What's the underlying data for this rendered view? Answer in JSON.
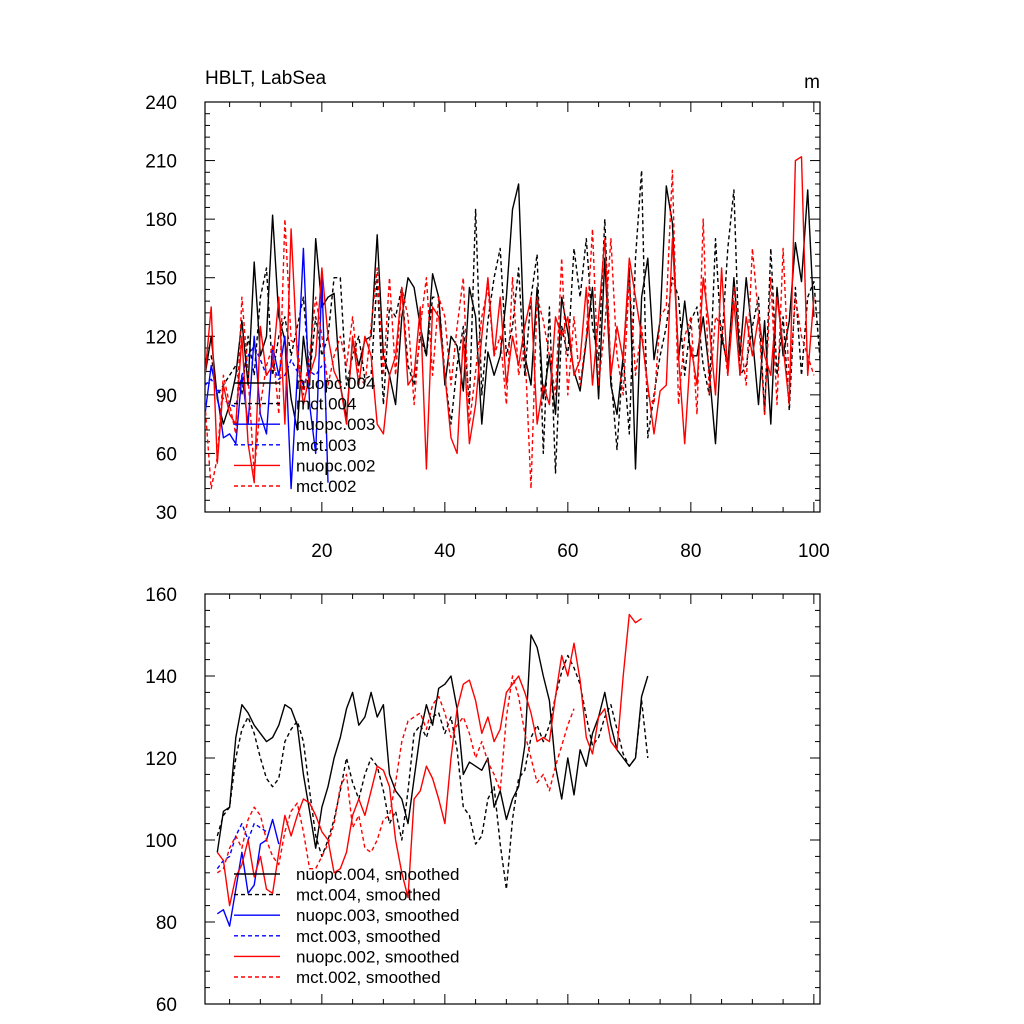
{
  "chart_data": [
    {
      "type": "line",
      "title": "HBLT, LabSea",
      "units": "m",
      "xlim": [
        1,
        101
      ],
      "ylim": [
        30,
        240
      ],
      "xticks": [
        20,
        40,
        60,
        80,
        100
      ],
      "yticks": [
        30,
        60,
        90,
        120,
        150,
        180,
        210,
        240
      ],
      "x_start": 1,
      "series": [
        {
          "name": "nuopc.004",
          "color": "#000000",
          "dash": false,
          "values": [
            100,
            120,
            88,
            75,
            85,
            100,
            128,
            95,
            158,
            110,
            120,
            182,
            130,
            118,
            88,
            72,
            120,
            95,
            170,
            135,
            140,
            142,
            95,
            78,
            118,
            105,
            118,
            120,
            172,
            110,
            100,
            85,
            130,
            150,
            145,
            125,
            110,
            152,
            140,
            95,
            120,
            115,
            92,
            145,
            130,
            75,
            112,
            100,
            110,
            140,
            185,
            198,
            110,
            95,
            145,
            88,
            110,
            80,
            140,
            122,
            102,
            92,
            118,
            145,
            88,
            160,
            95,
            80,
            110,
            155,
            52,
            140,
            160,
            108,
            128,
            197,
            178,
            108,
            138,
            110,
            110,
            130,
            102,
            65,
            120,
            105,
            150,
            110,
            150,
            120,
            85,
            128,
            75,
            145,
            110,
            128,
            168,
            148,
            195,
            130
          ]
        },
        {
          "name": "mct.004",
          "color": "#000000",
          "dash": true,
          "values": [
            108,
            110,
            90,
            95,
            100,
            105,
            90,
            120,
            100,
            140,
            155,
            100,
            120,
            130,
            110,
            125,
            140,
            100,
            130,
            110,
            120,
            150,
            150,
            95,
            110,
            120,
            98,
            100,
            150,
            85,
            135,
            130,
            145,
            105,
            95,
            120,
            110,
            140,
            140,
            100,
            75,
            105,
            125,
            85,
            185,
            90,
            128,
            150,
            165,
            110,
            125,
            155,
            100,
            140,
            162,
            60,
            135,
            50,
            125,
            110,
            165,
            140,
            170,
            125,
            108,
            180,
            100,
            62,
            110,
            70,
            160,
            205,
            68,
            90,
            110,
            125,
            150,
            140,
            100,
            128,
            135,
            105,
            90,
            170,
            115,
            165,
            195,
            100,
            105,
            125,
            140,
            80,
            165,
            100,
            130,
            82,
            145,
            100,
            140,
            148,
            108
          ]
        },
        {
          "name": "nuopc.003",
          "color": "#0000ff",
          "dash": false,
          "values": [
            80,
            105,
            90,
            68,
            70,
            65,
            100,
            75,
            120,
            80,
            70,
            115,
            100,
            120,
            42,
            100,
            165,
            85,
            60,
            150,
            45
          ]
        },
        {
          "name": "mct.003",
          "color": "#0000ff",
          "dash": true,
          "values": [
            95,
            98,
            93,
            88,
            85,
            84,
            100,
            110,
            115,
            108,
            100,
            105,
            98,
            100,
            108,
            102,
            95,
            102,
            100,
            105
          ]
        },
        {
          "name": "nuopc.002",
          "color": "#ff0000",
          "dash": false,
          "values": [
            100,
            135,
            55,
            95,
            80,
            75,
            120,
            65,
            45,
            125,
            100,
            105,
            140,
            75,
            175,
            110,
            85,
            100,
            110,
            155,
            120,
            102,
            95,
            75,
            120,
            95,
            120,
            110,
            75,
            70,
            100,
            110,
            145,
            95,
            100,
            135,
            52,
            135,
            130,
            100,
            68,
            60,
            120,
            65,
            85,
            120,
            150,
            110,
            140,
            95,
            120,
            105,
            125,
            140,
            75,
            95,
            85,
            130,
            120,
            130,
            100,
            108,
            145,
            95,
            130,
            170,
            100,
            125,
            108,
            160,
            140,
            120,
            95,
            70,
            92,
            95,
            170,
            110,
            65,
            115,
            95,
            150,
            125,
            90,
            155,
            100,
            138,
            100,
            130,
            110,
            130,
            110,
            100,
            140,
            115,
            85,
            210,
            212,
            100,
            140
          ]
        },
        {
          "name": "mct.002",
          "color": "#ff0000",
          "dash": true,
          "values": [
            85,
            42,
            58,
            100,
            85,
            70,
            140,
            100,
            50,
            85,
            105,
            115,
            80,
            180,
            118,
            115,
            90,
            110,
            140,
            120,
            95,
            110,
            120,
            105,
            130,
            100,
            95,
            125,
            155,
            100,
            150,
            100,
            145,
            130,
            85,
            125,
            150,
            100,
            140,
            130,
            95,
            125,
            150,
            75,
            102,
            130,
            145,
            110,
            120,
            85,
            150,
            100,
            115,
            42,
            140,
            128,
            110,
            90,
            160,
            90,
            130,
            95,
            120,
            175,
            95,
            125,
            170,
            110,
            90,
            150,
            100,
            125,
            90,
            85,
            130,
            135,
            205,
            85,
            120,
            130,
            80,
            180,
            90,
            130,
            125,
            100,
            145,
            120,
            95,
            165,
            130,
            80,
            150,
            85,
            165,
            95,
            140,
            120,
            110,
            100
          ]
        }
      ]
    },
    {
      "type": "line",
      "xlim": [
        1,
        101
      ],
      "ylim": [
        60,
        160
      ],
      "yticks": [
        60,
        80,
        100,
        120,
        140,
        160
      ],
      "x_start": 3,
      "series": [
        {
          "name": "nuopc.004, smoothed",
          "color": "#000000",
          "dash": false,
          "values": [
            97,
            107,
            108,
            125,
            133,
            131,
            128,
            126,
            124,
            125,
            128,
            133,
            132,
            128,
            116,
            107,
            98,
            108,
            113,
            120,
            125,
            132,
            136,
            128,
            130,
            136,
            130,
            133,
            116,
            112,
            110,
            104,
            115,
            126,
            133,
            128,
            137,
            138,
            140,
            132,
            116,
            119,
            118,
            117,
            120,
            108,
            112,
            105,
            110,
            113,
            123,
            150,
            147,
            140,
            134,
            118,
            110,
            120,
            111,
            122,
            118,
            126,
            130,
            136,
            128,
            122,
            120,
            118,
            120,
            135,
            140
          ]
        },
        {
          "name": "mct.004, smoothed",
          "color": "#000000",
          "dash": true,
          "values": [
            101,
            106,
            108,
            120,
            127,
            130,
            126,
            120,
            115,
            113,
            115,
            124,
            127,
            129,
            124,
            112,
            101,
            96,
            100,
            105,
            112,
            120,
            114,
            110,
            116,
            120,
            118,
            112,
            104,
            107,
            100,
            112,
            126,
            128,
            125,
            130,
            131,
            126,
            130,
            122,
            108,
            106,
            99,
            101,
            110,
            113,
            99,
            88,
            105,
            115,
            117,
            125,
            128,
            124,
            128,
            135,
            141,
            145,
            142,
            138,
            130,
            123,
            125,
            130,
            133,
            127,
            121,
            118,
            120,
            134,
            120
          ]
        },
        {
          "name": "nuopc.003, smoothed",
          "color": "#0000ff",
          "dash": false,
          "values": [
            82,
            83,
            79,
            88,
            97,
            87,
            89,
            99,
            100,
            105,
            99
          ]
        },
        {
          "name": "mct.003, smoothed",
          "color": "#0000ff",
          "dash": true,
          "values": [
            93,
            95,
            96,
            101,
            104,
            100,
            104,
            103,
            102
          ]
        },
        {
          "name": "nuopc.002, smoothed",
          "color": "#ff0000",
          "dash": false,
          "values": [
            97,
            95,
            84,
            91,
            94,
            100,
            91,
            96,
            88,
            87,
            97,
            106,
            101,
            106,
            110,
            109,
            106,
            102,
            100,
            92,
            93,
            97,
            106,
            110,
            106,
            112,
            118,
            117,
            113,
            100,
            92,
            86,
            110,
            112,
            118,
            115,
            110,
            104,
            120,
            132,
            138,
            139,
            134,
            126,
            130,
            124,
            127,
            136,
            138,
            140,
            136,
            131,
            124,
            125,
            124,
            135,
            145,
            140,
            148,
            139,
            125,
            121,
            130,
            132,
            124,
            122,
            140,
            155,
            153,
            154
          ]
        },
        {
          "name": "mct.002, smoothed",
          "color": "#ff0000",
          "dash": true,
          "values": [
            92,
            93,
            98,
            101,
            98,
            105,
            108,
            106,
            100,
            96,
            94,
            102,
            107,
            109,
            102,
            93,
            93,
            96,
            99,
            104,
            113,
            116,
            103,
            106,
            98,
            97,
            100,
            105,
            106,
            114,
            124,
            129,
            130,
            131,
            127,
            133,
            135,
            131,
            125,
            128,
            130,
            126,
            120,
            124,
            119,
            116,
            112,
            130,
            140,
            135,
            126,
            120,
            114,
            116,
            112,
            118,
            123,
            128,
            132
          ]
        }
      ]
    }
  ]
}
